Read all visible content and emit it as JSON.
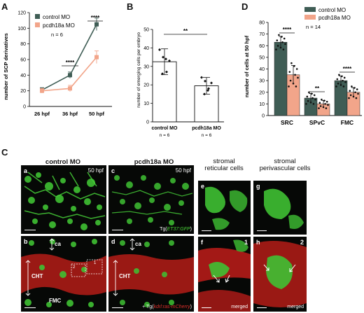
{
  "panels": {
    "A": {
      "letter": "A",
      "ylabel": "number of SCP derivatives",
      "legend": [
        "control MO",
        "pcdh18a MO"
      ],
      "n_note": "n = 6",
      "significance": [
        "****",
        "****"
      ]
    },
    "B": {
      "letter": "B",
      "ylabel": "number of emerging cells per embryo",
      "n_notes": [
        "n = 6",
        "n = 6"
      ],
      "significance": "**"
    },
    "C": {
      "letter": "C",
      "col_titles": [
        "control MO",
        "pcdh18a MO",
        "stromal\nreticular cells",
        "stromal\nperivascular cells"
      ],
      "sub": {
        "a": "a",
        "b": "b",
        "c": "c",
        "d": "d",
        "e": "e",
        "f": "f",
        "g": "g",
        "h": "h"
      },
      "stage": "50 hpf",
      "ca": "ca",
      "cht": "CHT",
      "fmc": "FMC",
      "tg_gfp_prefix": "Tg(",
      "tg_gfp_name": "ET37:GFP",
      "tg_gfp_suffix": ")",
      "tg_cherry_prefix": "+ Tg(",
      "tg_cherry_name": "kdrl:ras-mCherry",
      "tg_cherry_suffix": ")",
      "box1": "1",
      "box2": "2",
      "merged": "merged"
    },
    "D": {
      "letter": "D",
      "ylabel": "number of cells at 50 hpf",
      "legend": [
        "control MO",
        "pcdh18a MO"
      ],
      "n_note": "n = 14",
      "significance": [
        "****",
        "**",
        "****"
      ]
    }
  },
  "colors": {
    "control": "#3f5d55",
    "pcdh18a": "#f2a58a",
    "gfp": "#4cd63a",
    "cherry": "#c8201e"
  },
  "chart_data": [
    {
      "type": "line",
      "x": [
        "26 hpf",
        "36 hpf",
        "50 hpf"
      ],
      "ylim": [
        0,
        120
      ],
      "yticks": [
        0,
        20,
        40,
        60,
        80,
        100,
        120
      ],
      "ylabel": "number of SCP derivatives",
      "series": [
        {
          "name": "control MO",
          "values": [
            21,
            40,
            105
          ],
          "errors": [
            3,
            4,
            8
          ]
        },
        {
          "name": "pcdh18a MO",
          "values": [
            20,
            23,
            63
          ],
          "errors": [
            3,
            4,
            8
          ]
        }
      ],
      "legend_position": "top-left"
    },
    {
      "type": "bar",
      "categories": [
        "control MO",
        "pcdh18a MO"
      ],
      "values": [
        32.5,
        19.5
      ],
      "errors": [
        7,
        4.5
      ],
      "points": [
        [
          39,
          35,
          27,
          26,
          34,
          33
        ],
        [
          24,
          22,
          18,
          15,
          17,
          21
        ]
      ],
      "ylim": [
        0,
        50
      ],
      "yticks": [
        0,
        10,
        20,
        30,
        40,
        50
      ],
      "ylabel": "number of emerging cells per embryo"
    },
    {
      "type": "bar",
      "categories": [
        "SRC",
        "SPvC",
        "FMC"
      ],
      "ylim": [
        0,
        80
      ],
      "yticks": [
        0,
        10,
        20,
        30,
        40,
        50,
        60,
        70,
        80
      ],
      "ylabel": "number of cells at 50 hpf",
      "series": [
        {
          "name": "control MO",
          "values": [
            63,
            15,
            30
          ],
          "errors": [
            5,
            4,
            4
          ]
        },
        {
          "name": "pcdh18a MO",
          "values": [
            35,
            10,
            20
          ],
          "errors": [
            8,
            3,
            4
          ]
        }
      ],
      "legend_position": "top-right"
    }
  ]
}
